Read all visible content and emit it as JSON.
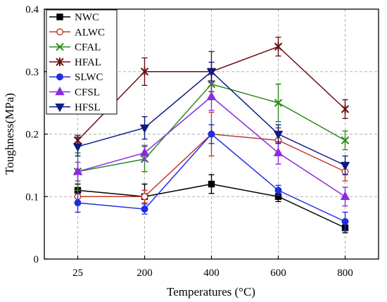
{
  "chart_data": {
    "type": "line",
    "title": "",
    "xlabel": "Temperatures (°C)",
    "ylabel": "Toughness(MPa)",
    "categories": [
      "25",
      "200",
      "400",
      "600",
      "800"
    ],
    "ylim": [
      0,
      0.4
    ],
    "yticks": [
      "0",
      "0.1",
      "0.2",
      "0.3",
      "0.4"
    ],
    "grid": true,
    "legend_position": "top-left",
    "series": [
      {
        "name": "NWC",
        "color": "#000000",
        "marker": "square",
        "filled": true,
        "values": [
          0.11,
          0.1,
          0.12,
          0.1,
          0.05
        ],
        "errors": [
          0.01,
          0.02,
          0.015,
          0.008,
          0.008
        ]
      },
      {
        "name": "ALWC",
        "color": "#c0392b",
        "marker": "circle",
        "filled": false,
        "values": [
          0.1,
          0.1,
          0.2,
          0.19,
          0.14
        ],
        "errors": [
          0.01,
          0.01,
          0.035,
          0.02,
          0.015
        ]
      },
      {
        "name": "CFAL",
        "color": "#2e8b1e",
        "marker": "x",
        "filled": false,
        "values": [
          0.14,
          0.16,
          0.28,
          0.25,
          0.19
        ],
        "errors": [
          0.03,
          0.02,
          0.025,
          0.03,
          0.015
        ]
      },
      {
        "name": "HFAL",
        "color": "#6b1010",
        "marker": "star",
        "filled": false,
        "values": [
          0.19,
          0.3,
          0.3,
          0.34,
          0.24
        ],
        "errors": [
          0.008,
          0.022,
          0.032,
          0.015,
          0.015
        ]
      },
      {
        "name": "SLWC",
        "color": "#1f2fe0",
        "marker": "circle",
        "filled": true,
        "values": [
          0.09,
          0.08,
          0.2,
          0.11,
          0.06
        ],
        "errors": [
          0.015,
          0.008,
          0.015,
          0.008,
          0.015
        ]
      },
      {
        "name": "CFSL",
        "color": "#8a2be2",
        "marker": "triangle-up",
        "filled": true,
        "values": [
          0.14,
          0.17,
          0.26,
          0.17,
          0.1
        ],
        "errors": [
          0.015,
          0.012,
          0.022,
          0.018,
          0.015
        ]
      },
      {
        "name": "HFSL",
        "color": "#0d1a80",
        "marker": "triangle-down",
        "filled": true,
        "values": [
          0.18,
          0.21,
          0.3,
          0.2,
          0.15
        ],
        "errors": [
          0.015,
          0.018,
          0.015,
          0.015,
          0.015
        ]
      }
    ]
  }
}
